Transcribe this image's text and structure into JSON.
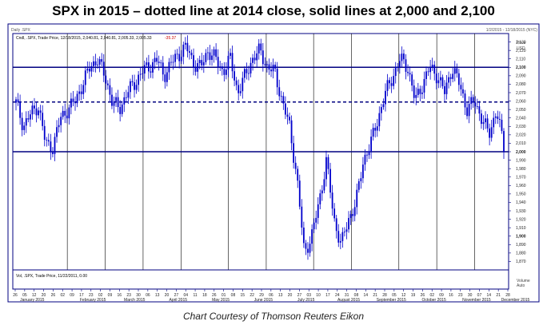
{
  "title": "SPX in 2015 – dotted line at 2014 close, solid lines at 2,000 and 2,100",
  "credit": "Chart Courtesy of Thomson Reuters Eikon",
  "header": {
    "window_label": "Daily .SPX",
    "window_right": "1/2/2015 - 12/18/2015 (NYC)",
    "legend_text": "Cndl, .SPX, Trade Price, 12/18/2015, 2,040.81, 2,040.81, 2,005.33, 2,005.33",
    "legend_change": "-35.37",
    "volume_text": "Vol, .SPX, Trade Price, 11/22/2011, 0.00",
    "price_label": "Price",
    "currency_label": "USD",
    "volume_label": "Volume",
    "volume_sub": "Auto"
  },
  "colors": {
    "candle": "#0000cc",
    "reference_line": "#000080",
    "grid": "#000000",
    "border": "#000080",
    "down_label": "#cc0000"
  },
  "chart_data": {
    "type": "candlestick",
    "title": "SPX in 2015 – dotted line at 2014 close, solid lines at 2,000 and 2,100",
    "ylim": [
      1860,
      2140
    ],
    "y_ticks": [
      1870,
      1880,
      1890,
      1900,
      1910,
      1920,
      1930,
      1940,
      1950,
      1960,
      1970,
      1980,
      1990,
      2000,
      2010,
      2020,
      2030,
      2040,
      2050,
      2060,
      2070,
      2080,
      2090,
      2100,
      2110,
      2120,
      2130
    ],
    "y_tick_bold": [
      1900,
      2000,
      2100
    ],
    "reference_lines": [
      {
        "value": 2100,
        "style": "solid"
      },
      {
        "value": 2058.9,
        "style": "dotted"
      },
      {
        "value": 2000,
        "style": "solid"
      }
    ],
    "x_day_labels": [
      "26",
      "05",
      "12",
      "20",
      "26",
      "02",
      "09",
      "17",
      "23",
      "02",
      "09",
      "16",
      "23",
      "30",
      "06",
      "13",
      "20",
      "27",
      "04",
      "11",
      "18",
      "26",
      "01",
      "08",
      "15",
      "22",
      "29",
      "06",
      "13",
      "20",
      "27",
      "03",
      "10",
      "17",
      "24",
      "31",
      "08",
      "14",
      "21",
      "28",
      "05",
      "12",
      "19",
      "26",
      "02",
      "09",
      "16",
      "23",
      "30",
      "07",
      "14",
      "21",
      "28"
    ],
    "x_month_labels": [
      "January 2015",
      "February 2015",
      "March 2015",
      "April 2015",
      "May 2015",
      "June 2015",
      "July 2015",
      "August 2015",
      "September 2015",
      "October 2015",
      "November 2015",
      "December 2015"
    ],
    "x_month_label_positions": [
      1.8,
      8.2,
      12.6,
      17.2,
      21.7,
      26.2,
      30.7,
      35.2,
      39.7,
      44.2,
      48.7,
      52.8
    ],
    "x_month_separators": [
      5.5,
      9.5,
      13.5,
      17.5,
      22.5,
      26.5,
      31.5,
      35.5,
      40.5,
      44.5,
      48.5
    ],
    "x_week_gridlines": [
      9.5,
      13.5,
      17.5,
      22.5,
      26.5,
      31.5,
      35.5,
      40.5,
      44.5,
      48.5
    ],
    "close_path": [
      [
        0,
        2058
      ],
      [
        1,
        2030
      ],
      [
        2,
        2045
      ],
      [
        3,
        2055
      ],
      [
        4,
        2010
      ],
      [
        5,
        2005
      ],
      [
        6,
        2040
      ],
      [
        7,
        2050
      ],
      [
        8,
        2060
      ],
      [
        9,
        2080
      ],
      [
        10,
        2100
      ],
      [
        11,
        2110
      ],
      [
        12,
        2090
      ],
      [
        13,
        2060
      ],
      [
        14,
        2050
      ],
      [
        15,
        2070
      ],
      [
        16,
        2080
      ],
      [
        17,
        2095
      ],
      [
        18,
        2100
      ],
      [
        19,
        2110
      ],
      [
        20,
        2090
      ],
      [
        21,
        2105
      ],
      [
        22,
        2115
      ],
      [
        23,
        2125
      ],
      [
        24,
        2105
      ],
      [
        25,
        2100
      ],
      [
        26,
        2120
      ],
      [
        27,
        2110
      ],
      [
        28,
        2095
      ],
      [
        29,
        2110
      ],
      [
        30,
        2070
      ],
      [
        31,
        2090
      ],
      [
        32,
        2110
      ],
      [
        33,
        2120
      ],
      [
        34,
        2100
      ],
      [
        35,
        2095
      ],
      [
        36,
        2060
      ],
      [
        37,
        2030
      ],
      [
        38,
        1970
      ],
      [
        39,
        1880
      ],
      [
        40,
        1900
      ],
      [
        41,
        1940
      ],
      [
        42,
        1990
      ],
      [
        43,
        1920
      ],
      [
        44,
        1890
      ],
      [
        45,
        1920
      ],
      [
        46,
        1940
      ],
      [
        47,
        1990
      ],
      [
        48,
        2010
      ],
      [
        49,
        2040
      ],
      [
        50,
        2070
      ],
      [
        51,
        2090
      ],
      [
        52,
        2110
      ],
      [
        53,
        2100
      ],
      [
        54,
        2060
      ],
      [
        55,
        2080
      ],
      [
        56,
        2100
      ],
      [
        57,
        2090
      ],
      [
        58,
        2070
      ],
      [
        59,
        2100
      ],
      [
        60,
        2080
      ],
      [
        61,
        2050
      ],
      [
        62,
        2060
      ],
      [
        63,
        2040
      ],
      [
        64,
        2020
      ],
      [
        65,
        2050
      ],
      [
        66,
        2005
      ]
    ]
  }
}
